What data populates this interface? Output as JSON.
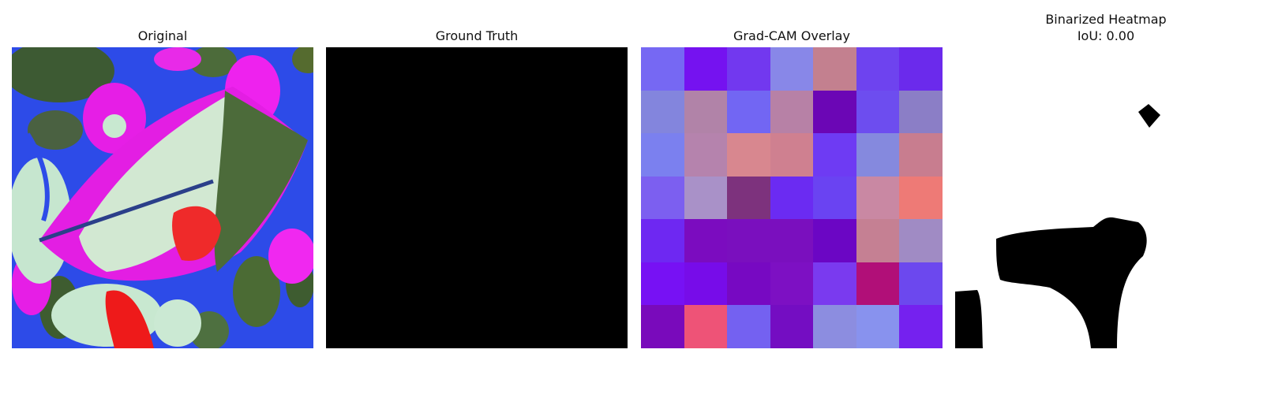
{
  "panels": {
    "original": {
      "title": "Original"
    },
    "ground_truth": {
      "title": "Ground Truth"
    },
    "gradcam": {
      "title": "Grad-CAM Overlay",
      "grid_colors": [
        [
          "#7668f3",
          "#7512f0",
          "#7238ef",
          "#8887e8",
          "#c3808f",
          "#6e43ef",
          "#6b2aec"
        ],
        [
          "#8385dd",
          "#b183a8",
          "#7266f3",
          "#b781a6",
          "#6b06b5",
          "#6d4def",
          "#8b7ec6"
        ],
        [
          "#7b80ef",
          "#b583ad",
          "#d8878f",
          "#cf8090",
          "#6e3bf3",
          "#8589de",
          "#c87d8f"
        ],
        [
          "#7c5ff0",
          "#a991c8",
          "#7d327d",
          "#6b2bf2",
          "#6a43f2",
          "#c988a3",
          "#ee7a76"
        ],
        [
          "#6e28f2",
          "#7b0cbf",
          "#7a0fbe",
          "#7a0fbe",
          "#6b06c4",
          "#c58093",
          "#a08bc4"
        ],
        [
          "#7711f4",
          "#770ce9",
          "#7709c2",
          "#7d10c3",
          "#7a3aef",
          "#b10f78",
          "#6c48ee"
        ],
        [
          "#790abb",
          "#ee5377",
          "#7461f1",
          "#740dc2",
          "#8c8de0",
          "#8892ee",
          "#7521ef"
        ]
      ]
    },
    "binarized": {
      "title": "Binarized Heatmap",
      "iou_label": "IoU: 0.00"
    }
  }
}
